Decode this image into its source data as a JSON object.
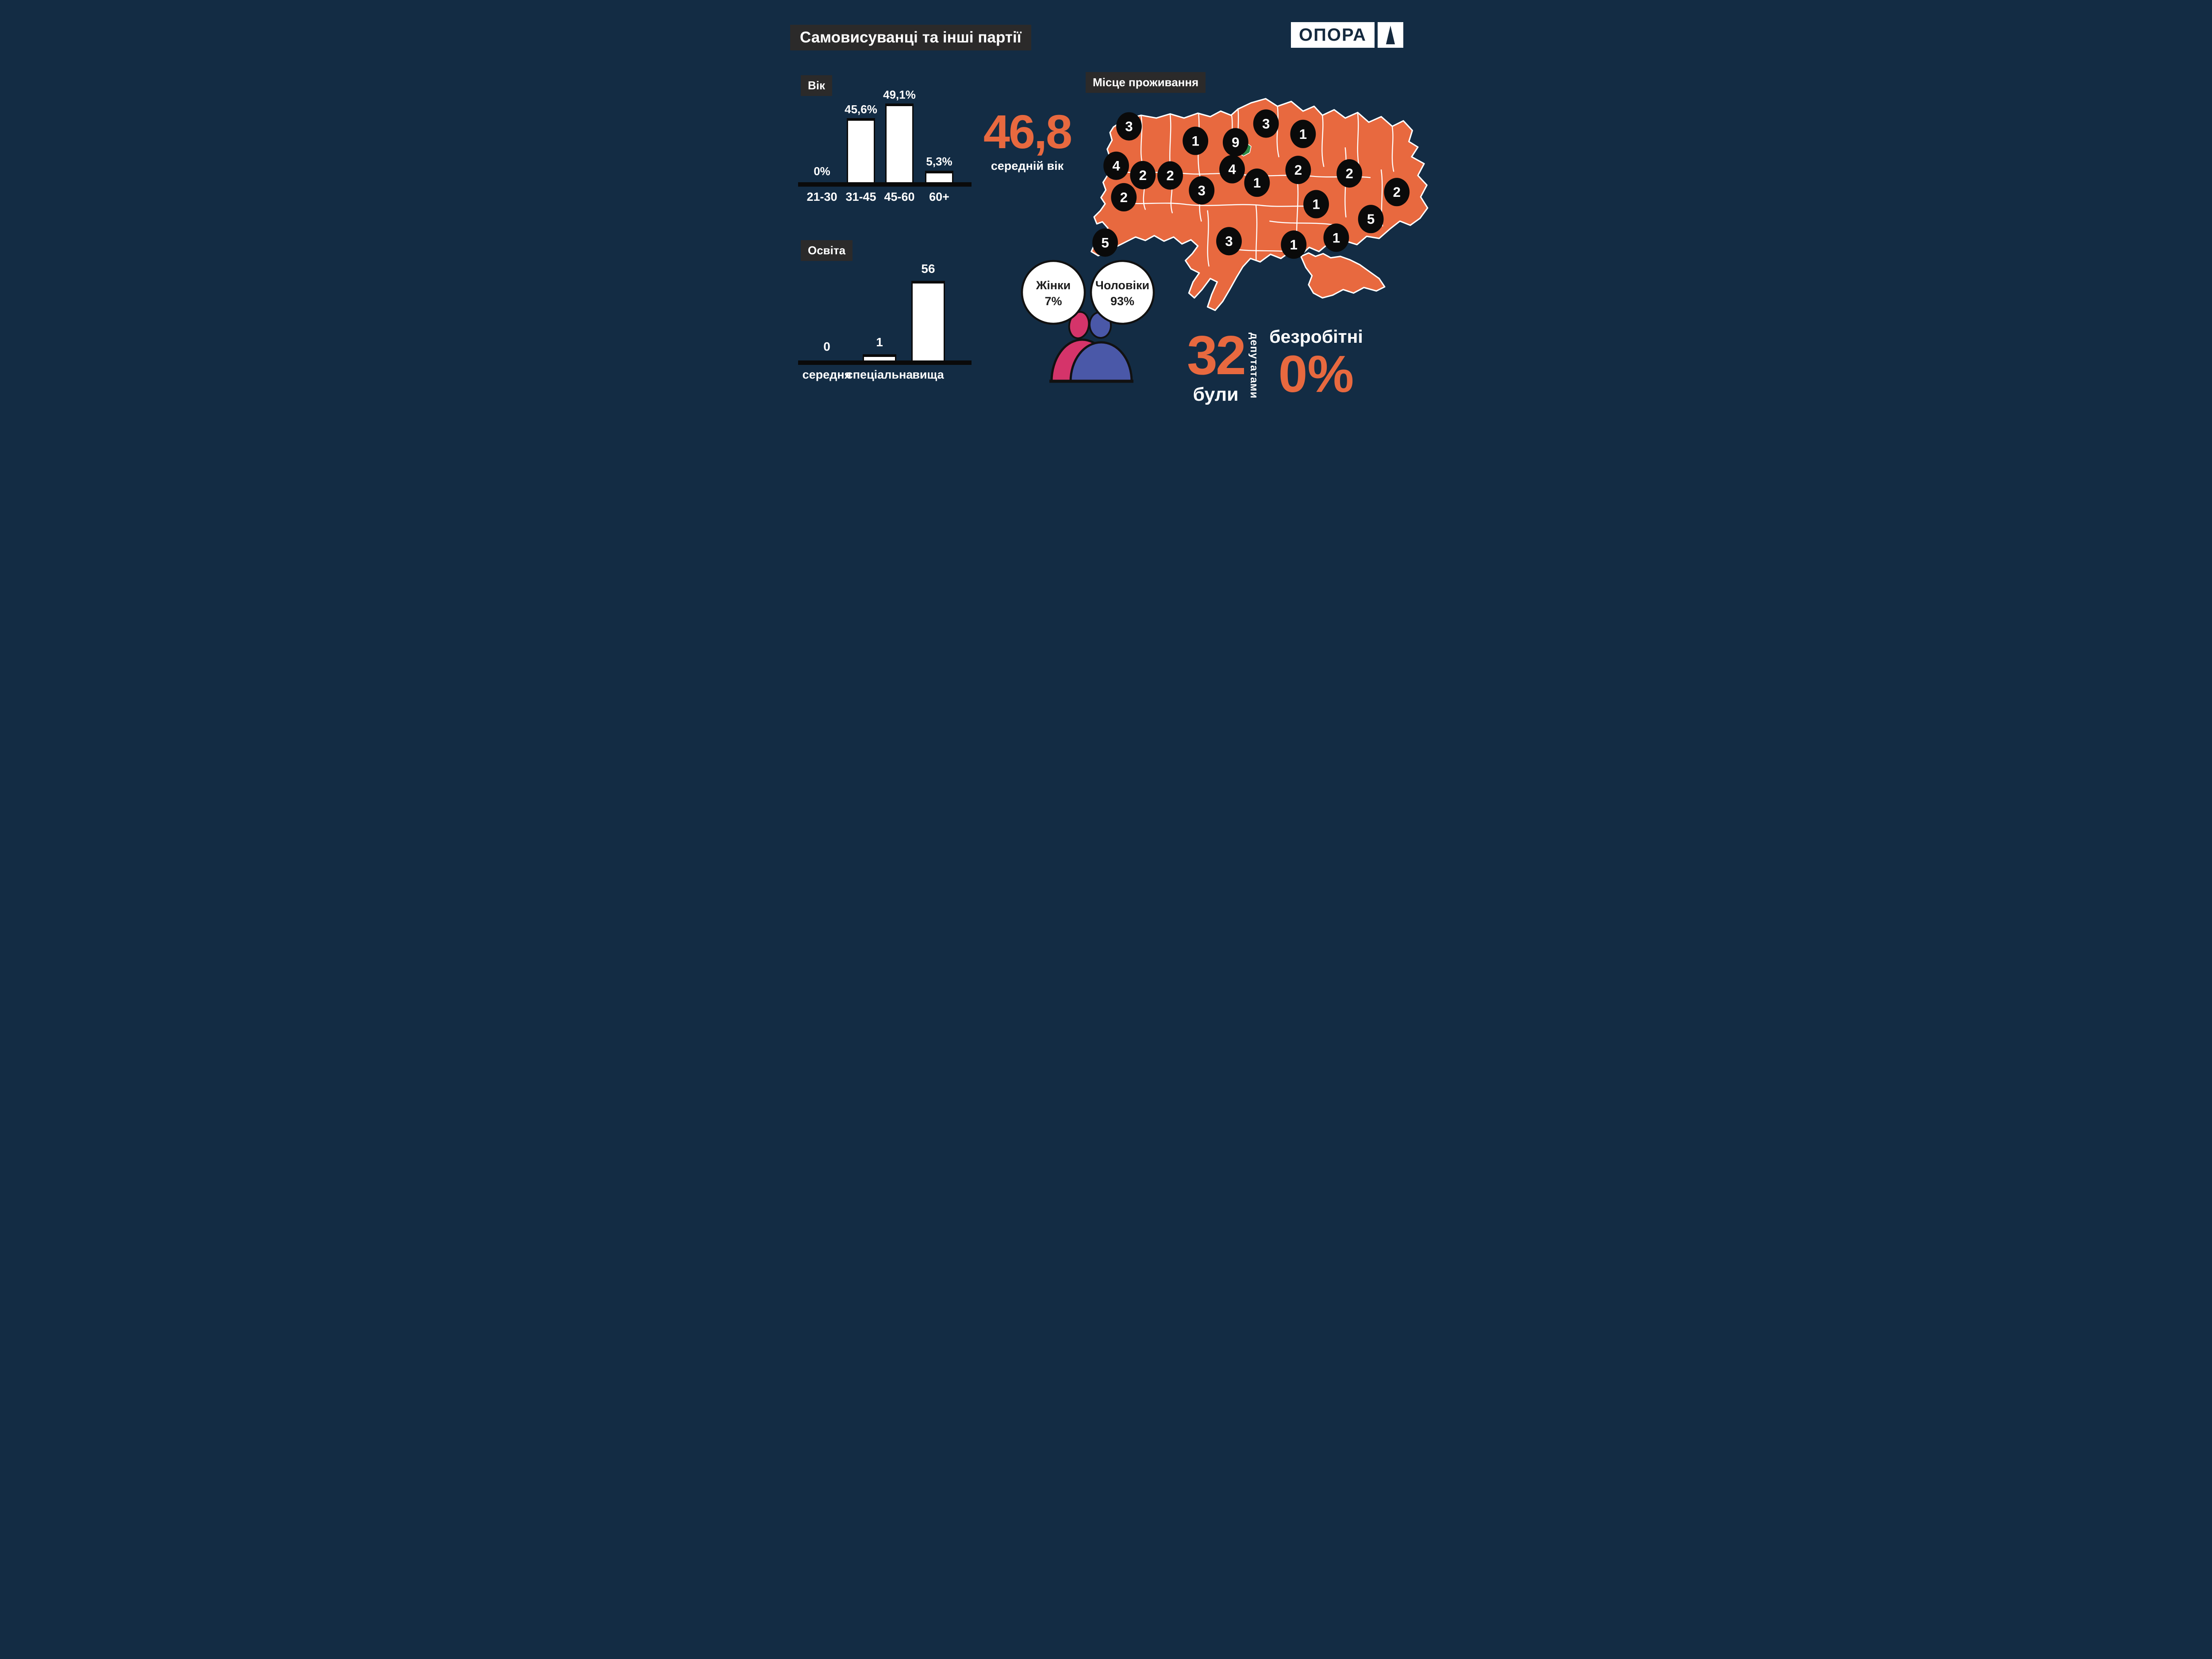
{
  "colors": {
    "background": "#132c44",
    "panel": "#2b2a2a",
    "orange": "#e8693f",
    "black": "#0a0a0a",
    "white": "#ffffff",
    "pink": "#d5346a",
    "blue": "#4a58a8",
    "green": "#2e8b47"
  },
  "header": {
    "title": "Самовисуванці та інші партії",
    "logo": {
      "text": "ОПОРА",
      "icon": "triangle-icon"
    }
  },
  "stats": {
    "average_age": {
      "value": "46,8",
      "label": "середній вік"
    },
    "former_deputies": {
      "value": "32",
      "line": "були",
      "vertical_label": "депутатами"
    },
    "unemployed": {
      "label": "безробітні",
      "value": "0%"
    }
  },
  "gender": {
    "women": {
      "label": "Жінки",
      "value": "7%"
    },
    "men": {
      "label": "Чоловіки",
      "value": "93%"
    }
  },
  "chart_data": [
    {
      "id": "age",
      "type": "bar",
      "title": "Вік",
      "categories": [
        "21-30",
        "31-45",
        "45-60",
        "60+"
      ],
      "values": [
        0,
        45.6,
        49.1,
        5.3
      ],
      "value_labels": [
        "0%",
        "45,6%",
        "49,1%",
        "5,3%"
      ],
      "ylim": [
        0,
        55
      ],
      "grid": false,
      "bar_color": "#ffffff"
    },
    {
      "id": "education",
      "type": "bar",
      "title": "Освіта",
      "categories": [
        "середня",
        "спеціальна",
        "вища"
      ],
      "values": [
        0,
        1,
        56
      ],
      "value_labels": [
        "0",
        "1",
        "56"
      ],
      "ylim": [
        0,
        60
      ],
      "grid": false,
      "bar_color": "#ffffff"
    },
    {
      "id": "residence",
      "type": "map",
      "title": "Місце проживання",
      "map_of": "Ukraine oblasts",
      "region_counts": [
        3,
        1,
        3,
        1,
        9,
        4,
        2,
        2,
        4,
        2,
        2,
        1,
        3,
        2,
        2,
        5,
        1,
        5,
        3,
        1,
        1
      ],
      "marker_color": "#0a0a0a",
      "map_color": "#e8693f",
      "highlight_region_color": "#2e8b47"
    }
  ]
}
